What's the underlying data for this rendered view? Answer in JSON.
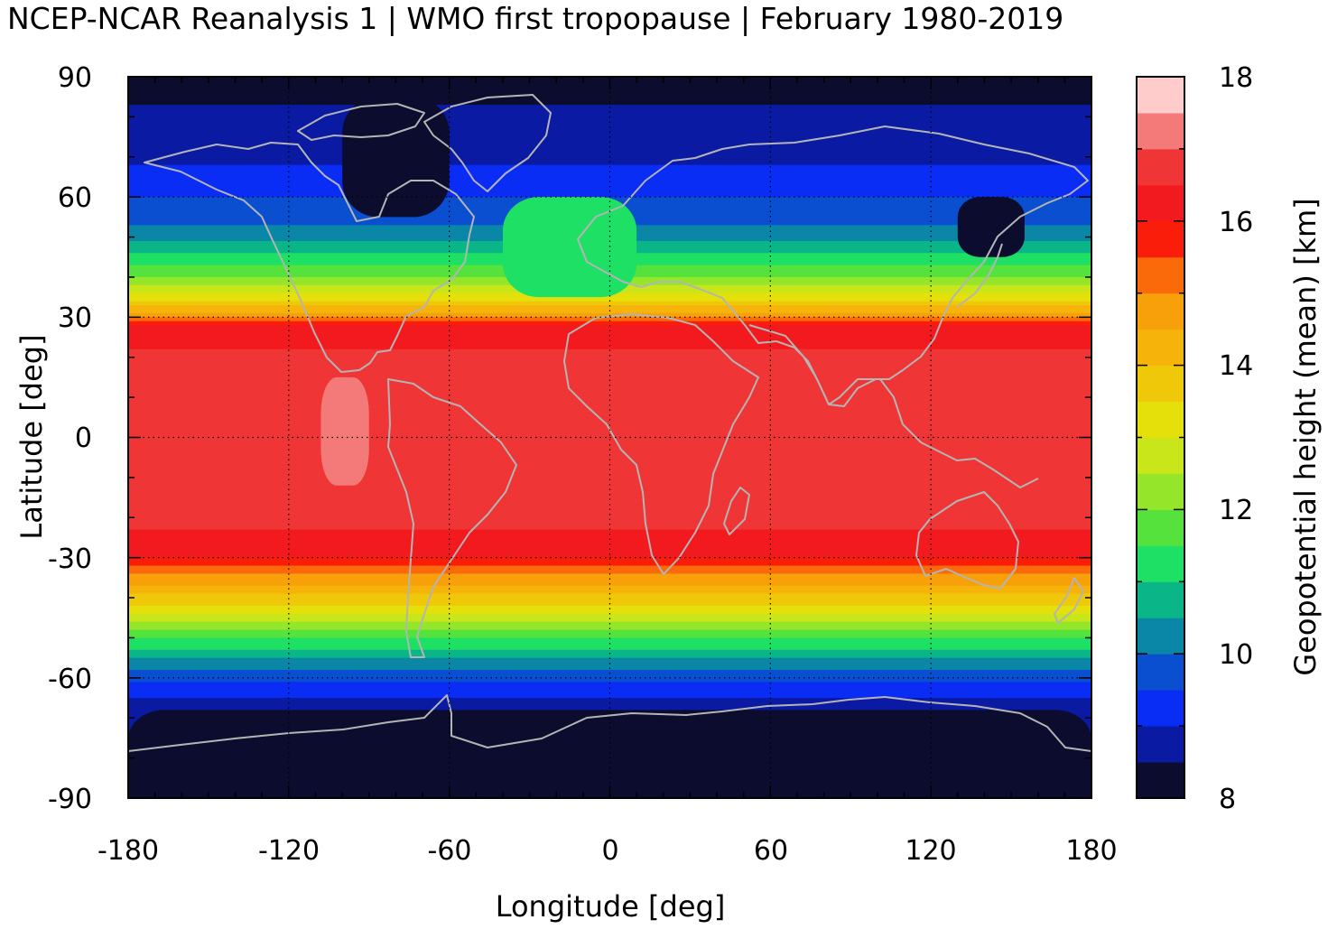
{
  "title": "NCEP-NCAR Reanalysis 1 | WMO first tropopause | February 1980-2019",
  "chart_data": {
    "type": "heatmap",
    "projection": "equirectangular",
    "xlabel": "Longitude [deg]",
    "ylabel": "Latitude [deg]",
    "xlim": [
      -180,
      180
    ],
    "ylim": [
      -90,
      90
    ],
    "xticks": [
      "-180",
      "-120",
      "-60",
      "0",
      "60",
      "120",
      "180"
    ],
    "yticks": [
      "90",
      "60",
      "30",
      "0",
      "-30",
      "-60",
      "-90"
    ],
    "grid": true,
    "coastlines_color": "#b4b4b4",
    "colorbar": {
      "label": "Geopotential height (mean) [km]",
      "range": [
        8,
        18
      ],
      "ticks": [
        "18",
        "16",
        "14",
        "12",
        "10",
        "8"
      ],
      "levels": [
        {
          "from": 8.0,
          "to": 8.5,
          "color": "#0c0c2e"
        },
        {
          "from": 8.5,
          "to": 9.0,
          "color": "#0a1aa3"
        },
        {
          "from": 9.0,
          "to": 9.5,
          "color": "#0a2df5"
        },
        {
          "from": 9.5,
          "to": 10.0,
          "color": "#0a4fd0"
        },
        {
          "from": 10.0,
          "to": 10.5,
          "color": "#0a86a6"
        },
        {
          "from": 10.5,
          "to": 11.0,
          "color": "#0ab687"
        },
        {
          "from": 11.0,
          "to": 11.5,
          "color": "#1ee064"
        },
        {
          "from": 11.5,
          "to": 12.0,
          "color": "#55e23c"
        },
        {
          "from": 12.0,
          "to": 12.5,
          "color": "#95e62a"
        },
        {
          "from": 12.5,
          "to": 13.0,
          "color": "#c8e61a"
        },
        {
          "from": 13.0,
          "to": 13.5,
          "color": "#e6e00a"
        },
        {
          "from": 13.5,
          "to": 14.0,
          "color": "#f0c80a"
        },
        {
          "from": 14.0,
          "to": 14.5,
          "color": "#f6b40a"
        },
        {
          "from": 14.5,
          "to": 15.0,
          "color": "#f8a00a"
        },
        {
          "from": 15.0,
          "to": 15.5,
          "color": "#fa6a0a"
        },
        {
          "from": 15.5,
          "to": 16.0,
          "color": "#fa1e0a"
        },
        {
          "from": 16.0,
          "to": 16.5,
          "color": "#f21a1e"
        },
        {
          "from": 16.5,
          "to": 17.0,
          "color": "#ef3535"
        },
        {
          "from": 17.0,
          "to": 17.5,
          "color": "#f47a7a"
        },
        {
          "from": 17.5,
          "to": 18.0,
          "color": "#ffcccc"
        }
      ]
    },
    "zonal_mean_profile_km": [
      {
        "lat": 90,
        "value": 8.4
      },
      {
        "lat": 75,
        "value": 8.6
      },
      {
        "lat": 65,
        "value": 9.2
      },
      {
        "lat": 55,
        "value": 9.8
      },
      {
        "lat": 48,
        "value": 10.6
      },
      {
        "lat": 42,
        "value": 11.6
      },
      {
        "lat": 38,
        "value": 12.6
      },
      {
        "lat": 34,
        "value": 13.6
      },
      {
        "lat": 31,
        "value": 14.6
      },
      {
        "lat": 28,
        "value": 16.1
      },
      {
        "lat": 20,
        "value": 16.6
      },
      {
        "lat": 0,
        "value": 16.8
      },
      {
        "lat": -20,
        "value": 16.7
      },
      {
        "lat": -30,
        "value": 16.1
      },
      {
        "lat": -35,
        "value": 14.8
      },
      {
        "lat": -40,
        "value": 13.8
      },
      {
        "lat": -45,
        "value": 12.8
      },
      {
        "lat": -50,
        "value": 11.6
      },
      {
        "lat": -55,
        "value": 10.4
      },
      {
        "lat": -60,
        "value": 9.6
      },
      {
        "lat": -65,
        "value": 9.0
      },
      {
        "lat": -70,
        "value": 8.7
      },
      {
        "lat": -90,
        "value": 8.2
      }
    ],
    "regional_features": [
      {
        "name": "equatorial east Pacific maximum",
        "lon": [
          -108,
          -90
        ],
        "lat": [
          -12,
          15
        ],
        "value": 17.2
      },
      {
        "name": "North America polar vortex minimum",
        "lon": [
          -100,
          -60
        ],
        "lat": [
          55,
          85
        ],
        "value": 8.2
      },
      {
        "name": "Northeast Asia minimum",
        "lon": [
          130,
          155
        ],
        "lat": [
          45,
          60
        ],
        "value": 8.2
      },
      {
        "name": "North Atlantic ridge",
        "lon": [
          -40,
          10
        ],
        "lat": [
          35,
          60
        ],
        "value": 11.3
      },
      {
        "name": "Antarctic minimum",
        "lon": [
          -180,
          180
        ],
        "lat": [
          -90,
          -68
        ],
        "value": 8.2
      }
    ]
  }
}
